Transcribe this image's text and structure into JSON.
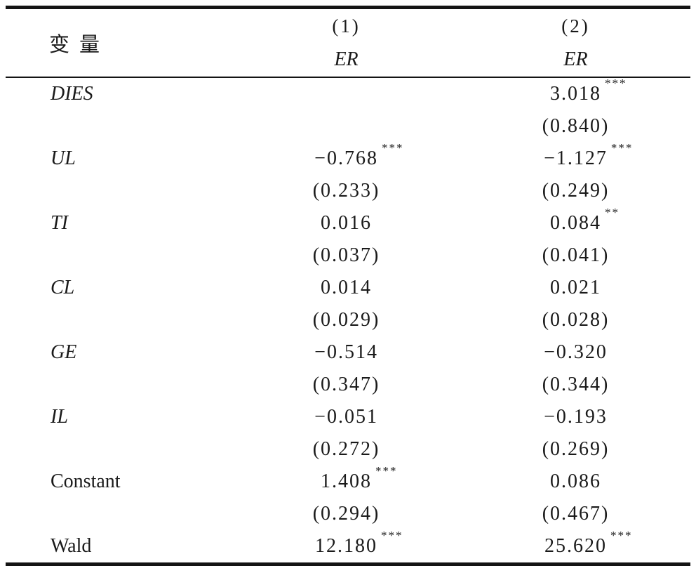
{
  "page": {
    "background_color": "#ffffff",
    "text_color": "#1a1a1a",
    "rule_color": "#141414"
  },
  "table": {
    "header": {
      "variable_label": "变量",
      "columns": [
        {
          "number": "(1)",
          "model": "ER"
        },
        {
          "number": "(2)",
          "model": "ER"
        }
      ]
    },
    "rows": [
      {
        "label": "DIES",
        "italic": true,
        "has_se": true,
        "cells": [
          {
            "coef": "",
            "stars": "",
            "se": ""
          },
          {
            "coef": "3.018",
            "stars": "***",
            "se": "(0.840)"
          }
        ]
      },
      {
        "label": "UL",
        "italic": true,
        "has_se": true,
        "cells": [
          {
            "coef": "−0.768",
            "stars": "***",
            "se": "(0.233)"
          },
          {
            "coef": "−1.127",
            "stars": "***",
            "se": "(0.249)"
          }
        ]
      },
      {
        "label": "TI",
        "italic": true,
        "has_se": true,
        "cells": [
          {
            "coef": "0.016",
            "stars": "",
            "se": "(0.037)"
          },
          {
            "coef": "0.084",
            "stars": "**",
            "se": "(0.041)"
          }
        ]
      },
      {
        "label": "CL",
        "italic": true,
        "has_se": true,
        "cells": [
          {
            "coef": "0.014",
            "stars": "",
            "se": "(0.029)"
          },
          {
            "coef": "0.021",
            "stars": "",
            "se": "(0.028)"
          }
        ]
      },
      {
        "label": "GE",
        "italic": true,
        "has_se": true,
        "cells": [
          {
            "coef": "−0.514",
            "stars": "",
            "se": "(0.347)"
          },
          {
            "coef": "−0.320",
            "stars": "",
            "se": "(0.344)"
          }
        ]
      },
      {
        "label": "IL",
        "italic": true,
        "has_se": true,
        "cells": [
          {
            "coef": "−0.051",
            "stars": "",
            "se": "(0.272)"
          },
          {
            "coef": "−0.193",
            "stars": "",
            "se": "(0.269)"
          }
        ]
      },
      {
        "label": "Constant",
        "italic": false,
        "has_se": true,
        "cells": [
          {
            "coef": "1.408",
            "stars": "***",
            "se": "(0.294)"
          },
          {
            "coef": "0.086",
            "stars": "",
            "se": "(0.467)"
          }
        ]
      },
      {
        "label": "Wald",
        "italic": false,
        "has_se": false,
        "cells": [
          {
            "coef": "12.180",
            "stars": "***",
            "se": ""
          },
          {
            "coef": "25.620",
            "stars": "***",
            "se": ""
          }
        ]
      }
    ]
  }
}
